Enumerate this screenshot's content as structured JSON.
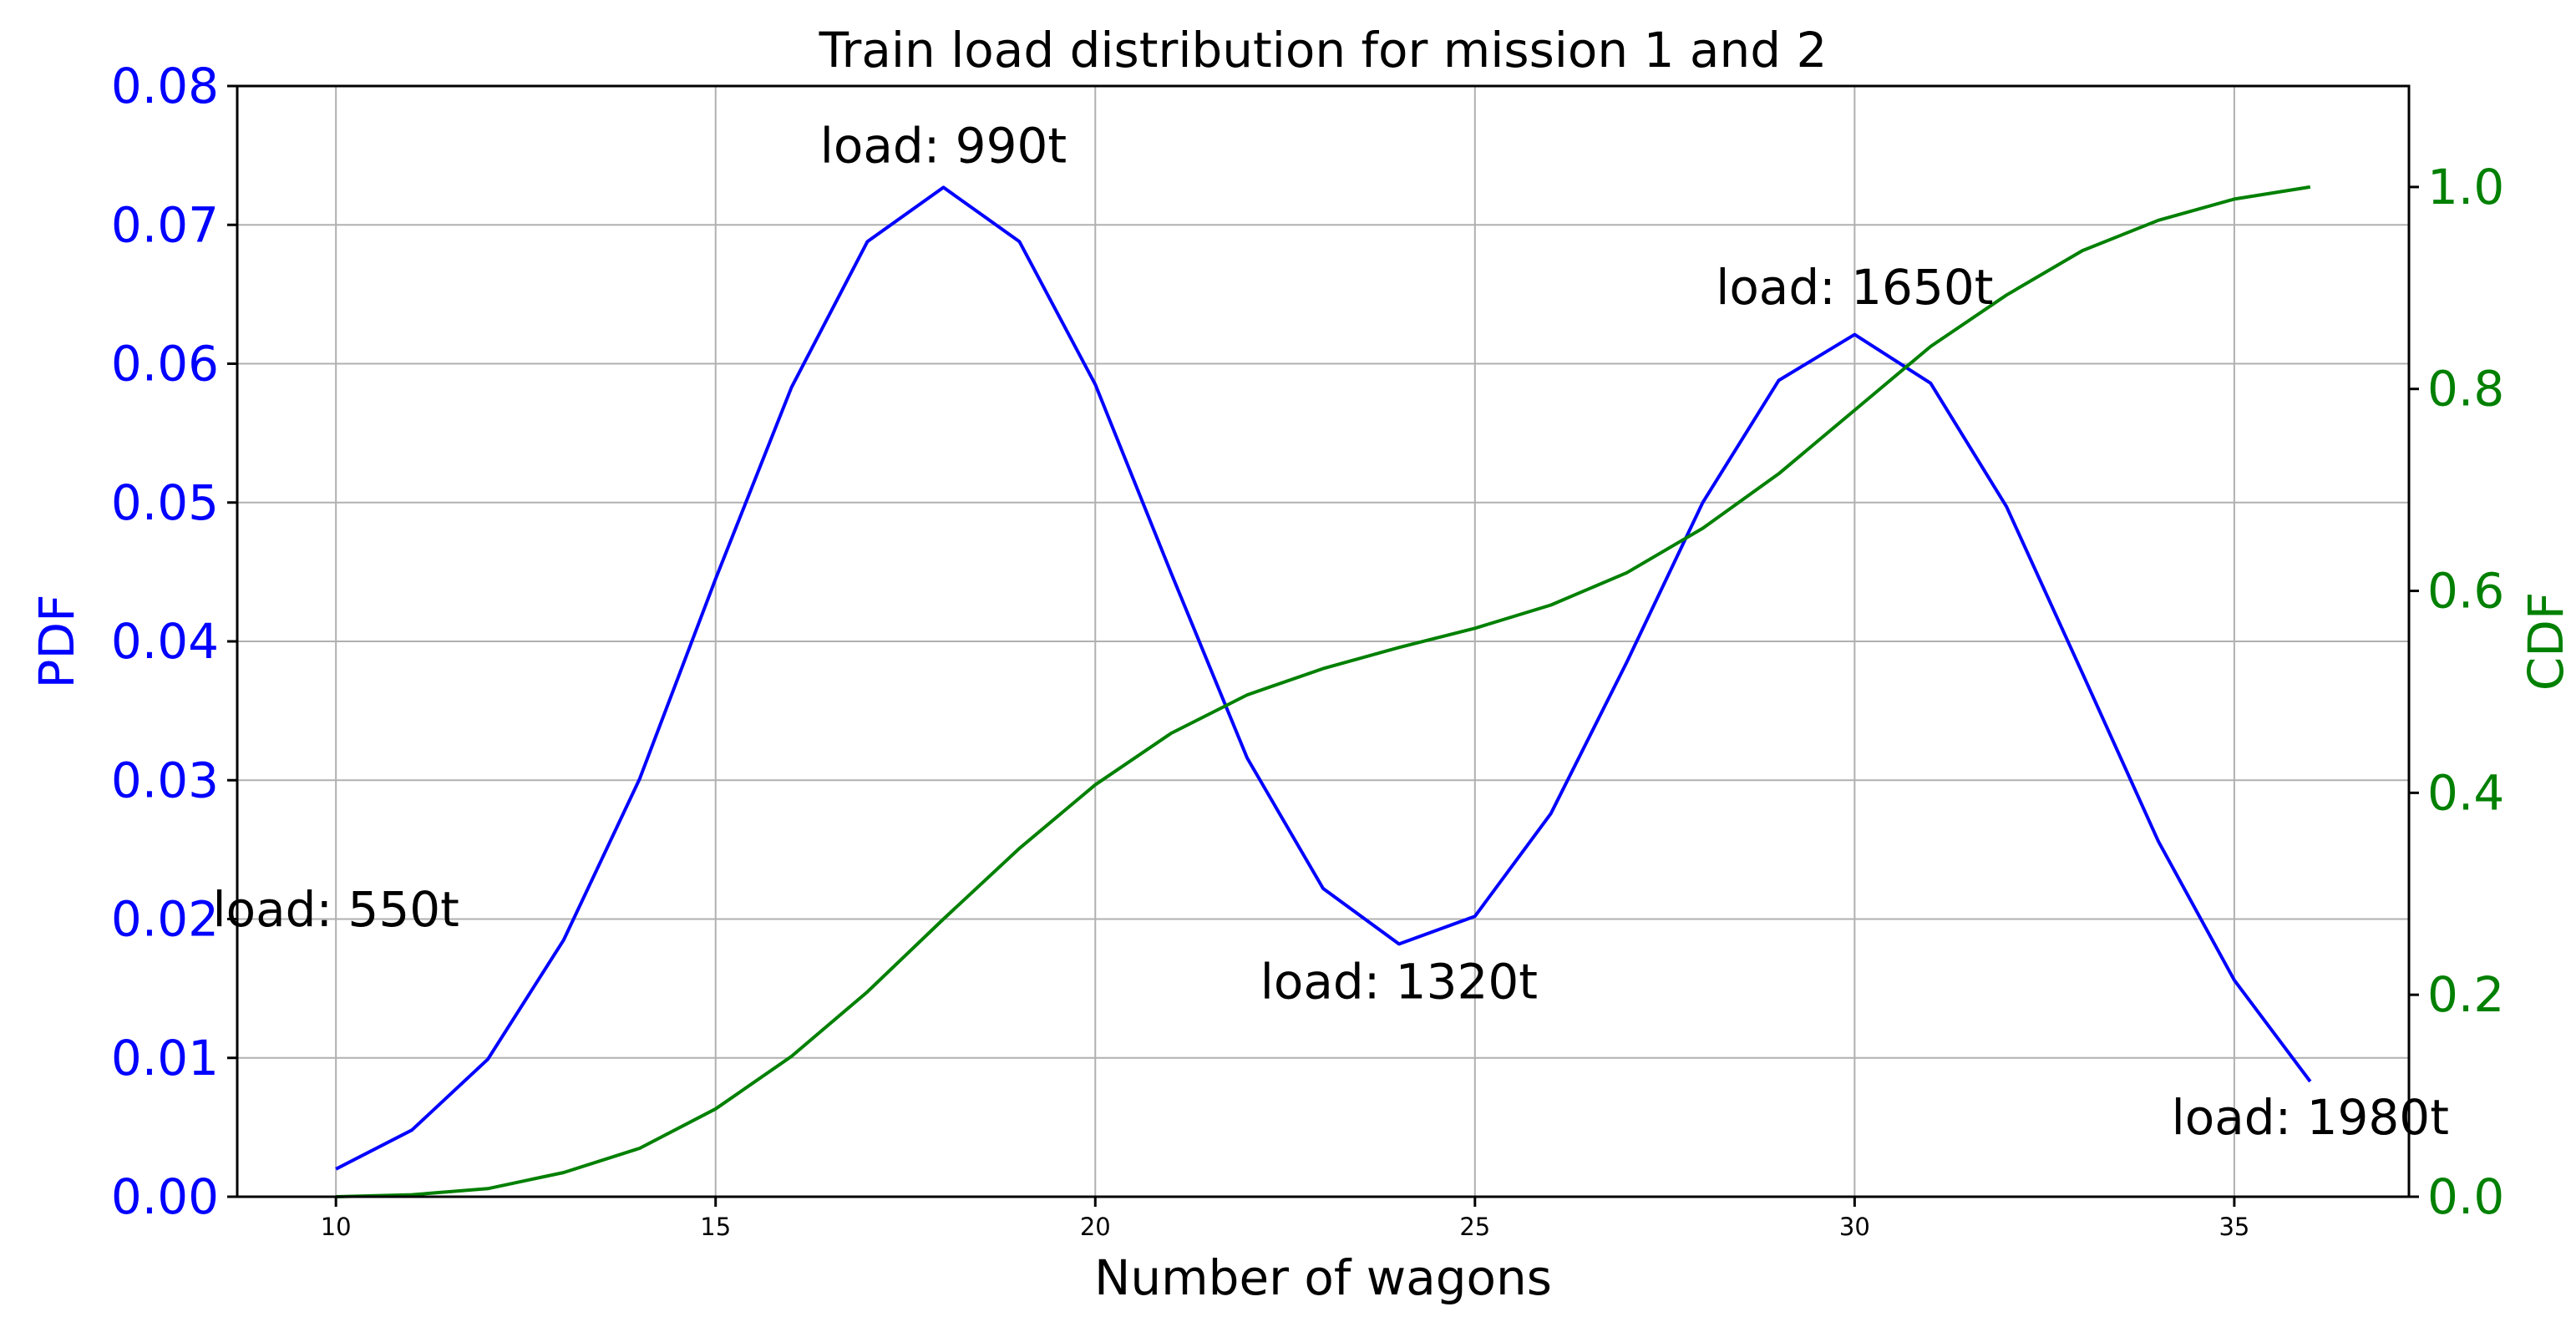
{
  "colors": {
    "pdf": "#0000ff",
    "cdf": "#008000",
    "grid": "#b0b0b0",
    "axis": "#000000"
  },
  "chart_data": {
    "type": "line",
    "title": "Train load distribution for mission 1 and 2",
    "xlabel": "Number of wagons",
    "ylabel_left": "PDF",
    "ylabel_right": "CDF",
    "xlim": [
      8.7,
      37.3
    ],
    "ylim_left": [
      0,
      0.08
    ],
    "ylim_right": [
      0,
      1.1
    ],
    "grid": true,
    "x_ticks": [
      "10",
      "15",
      "20",
      "25",
      "30",
      "35"
    ],
    "y_left_ticks": [
      "0.00",
      "0.01",
      "0.02",
      "0.03",
      "0.04",
      "0.05",
      "0.06",
      "0.07",
      "0.08"
    ],
    "y_right_ticks": [
      "0.0",
      "0.2",
      "0.4",
      "0.6",
      "0.8",
      "1.0"
    ],
    "x": [
      10,
      11,
      12,
      13,
      14,
      15,
      16,
      17,
      18,
      19,
      20,
      21,
      22,
      23,
      24,
      25,
      26,
      27,
      28,
      29,
      30,
      31,
      32,
      33,
      34,
      35,
      36
    ],
    "series": [
      {
        "name": "PDF",
        "axis": "left",
        "values": [
          0.002,
          0.0048,
          0.0099,
          0.0185,
          0.0301,
          0.0445,
          0.0583,
          0.0688,
          0.0727,
          0.0688,
          0.0585,
          0.0449,
          0.0316,
          0.0222,
          0.0182,
          0.0202,
          0.0276,
          0.0385,
          0.05,
          0.0588,
          0.0621,
          0.0586,
          0.0497,
          0.0377,
          0.0256,
          0.0156,
          0.0083
        ]
      },
      {
        "name": "CDF",
        "axis": "right",
        "values": [
          0.0,
          0.002,
          0.008,
          0.024,
          0.048,
          0.087,
          0.139,
          0.203,
          0.275,
          0.345,
          0.408,
          0.459,
          0.497,
          0.523,
          0.544,
          0.563,
          0.586,
          0.618,
          0.662,
          0.716,
          0.779,
          0.842,
          0.893,
          0.937,
          0.967,
          0.988,
          1.0
        ]
      }
    ],
    "annotations": [
      {
        "text": "load: 550t",
        "x": 10,
        "y": 0.0195
      },
      {
        "text": "load: 990t",
        "x": 18,
        "y": 0.0745
      },
      {
        "text": "load: 1320t",
        "x": 24,
        "y": 0.0143
      },
      {
        "text": "load: 1650t",
        "x": 30,
        "y": 0.0643
      },
      {
        "text": "load: 1980t",
        "x": 36,
        "y": 0.0045
      }
    ]
  }
}
